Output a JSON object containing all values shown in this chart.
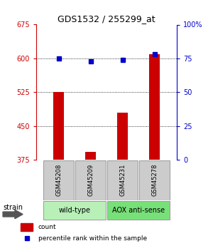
{
  "title": "GDS1532 / 255299_at",
  "samples": [
    "GSM45208",
    "GSM45209",
    "GSM45231",
    "GSM45278"
  ],
  "counts": [
    525,
    393,
    480,
    610
  ],
  "percentiles": [
    75,
    73,
    74,
    78
  ],
  "ylim_left": [
    375,
    675
  ],
  "yticks_left": [
    375,
    450,
    525,
    600,
    675
  ],
  "ylim_right": [
    0,
    100
  ],
  "yticks_right": [
    0,
    25,
    50,
    75,
    100
  ],
  "groups": [
    {
      "label": "wild-type",
      "indices": [
        0,
        1
      ],
      "color": "#b8f0b8"
    },
    {
      "label": "AOX anti-sense",
      "indices": [
        2,
        3
      ],
      "color": "#78e078"
    }
  ],
  "bar_color": "#cc0000",
  "dot_color": "#0000cc",
  "bar_width": 0.35,
  "grid_color": "#000000",
  "sample_box_color": "#cccccc",
  "sample_box_edge": "#999999",
  "legend_items": [
    {
      "label": "count",
      "color": "#cc0000"
    },
    {
      "label": "percentile rank within the sample",
      "color": "#0000cc"
    }
  ],
  "xlabel_strain": "strain"
}
